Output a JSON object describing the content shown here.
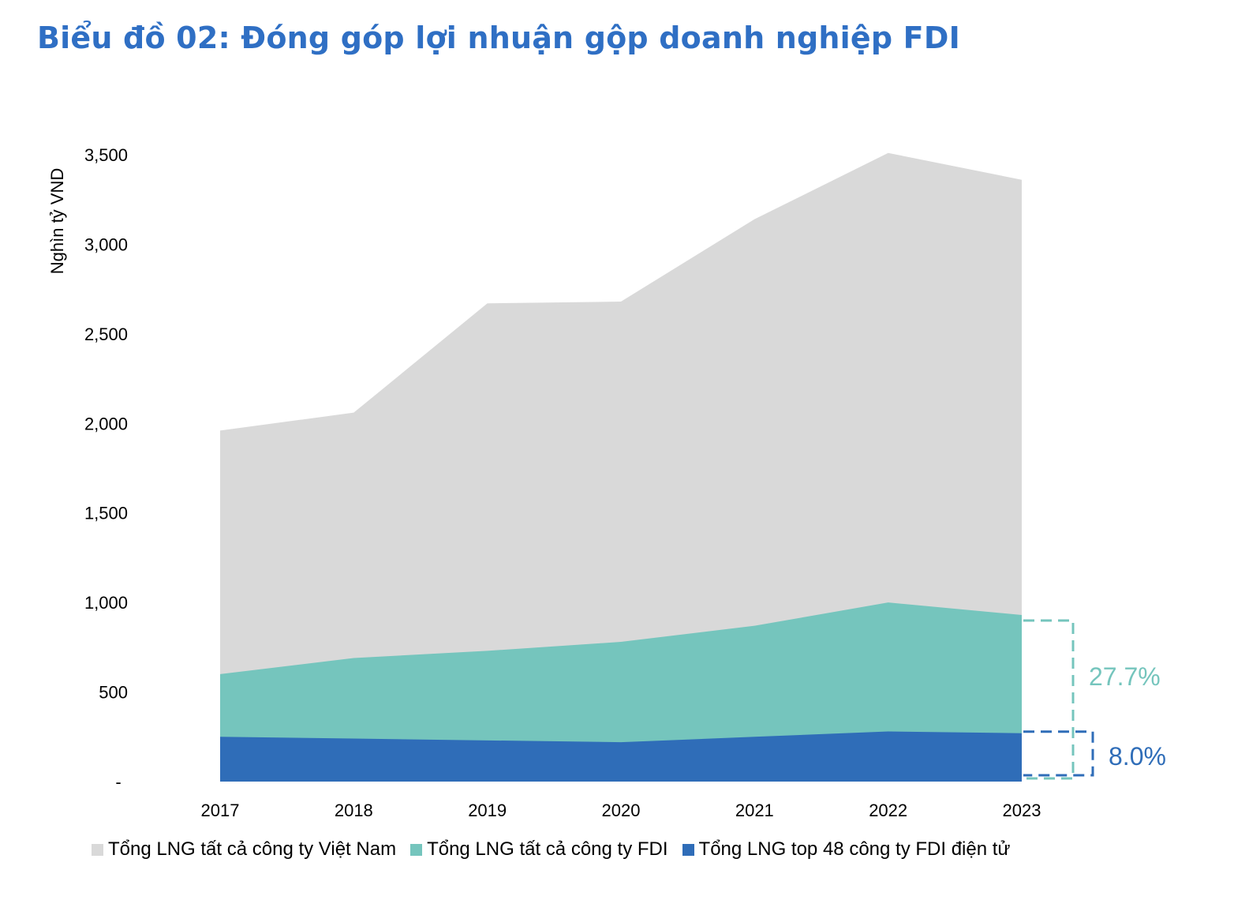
{
  "title": "Biểu đồ 02: Đóng góp lợi nhuận gộp doanh nghiệp FDI",
  "chart_data": {
    "type": "area",
    "title": "Biểu đồ 02: Đóng góp lợi nhuận gộp doanh nghiệp FDI",
    "ylabel": "Nghìn tỷ VND",
    "xlabel": "",
    "ylim": [
      0,
      3500
    ],
    "y_ticks": [
      {
        "value": 0,
        "label": "-"
      },
      {
        "value": 500,
        "label": "500"
      },
      {
        "value": 1000,
        "label": "1,000"
      },
      {
        "value": 1500,
        "label": "1,500"
      },
      {
        "value": 2000,
        "label": "2,000"
      },
      {
        "value": 2500,
        "label": "2,500"
      },
      {
        "value": 3000,
        "label": "3,000"
      },
      {
        "value": 3500,
        "label": "3,500"
      }
    ],
    "categories": [
      "2017",
      "2018",
      "2019",
      "2020",
      "2021",
      "2022",
      "2023"
    ],
    "series": [
      {
        "name": "Tổng LNG tất cả công ty Việt Nam",
        "color": "#d9d9d9",
        "values": [
          1960,
          2060,
          2670,
          2680,
          3140,
          3510,
          3360
        ]
      },
      {
        "name": "Tổng LNG tất cả công ty FDI",
        "color": "#75c5bd",
        "values": [
          600,
          690,
          730,
          780,
          870,
          1000,
          930
        ]
      },
      {
        "name": "Tổng LNG top 48 công ty FDI điện tử",
        "color": "#2f6db8",
        "values": [
          250,
          240,
          230,
          220,
          250,
          280,
          270
        ]
      }
    ],
    "annotations": [
      {
        "label": "27.7%",
        "series": "Tổng LNG tất cả công ty FDI",
        "color": "#75c5bd"
      },
      {
        "label": "8.0%",
        "series": "Tổng LNG top 48 công ty FDI điện tử",
        "color": "#2f6db8"
      }
    ]
  },
  "legend": [
    {
      "label": "Tổng LNG tất cả công ty Việt Nam",
      "color": "#d9d9d9"
    },
    {
      "label": "Tổng LNG tất cả công ty FDI",
      "color": "#75c5bd"
    },
    {
      "label": "Tổng LNG top 48 công ty FDI điện tử",
      "color": "#2f6db8"
    }
  ]
}
